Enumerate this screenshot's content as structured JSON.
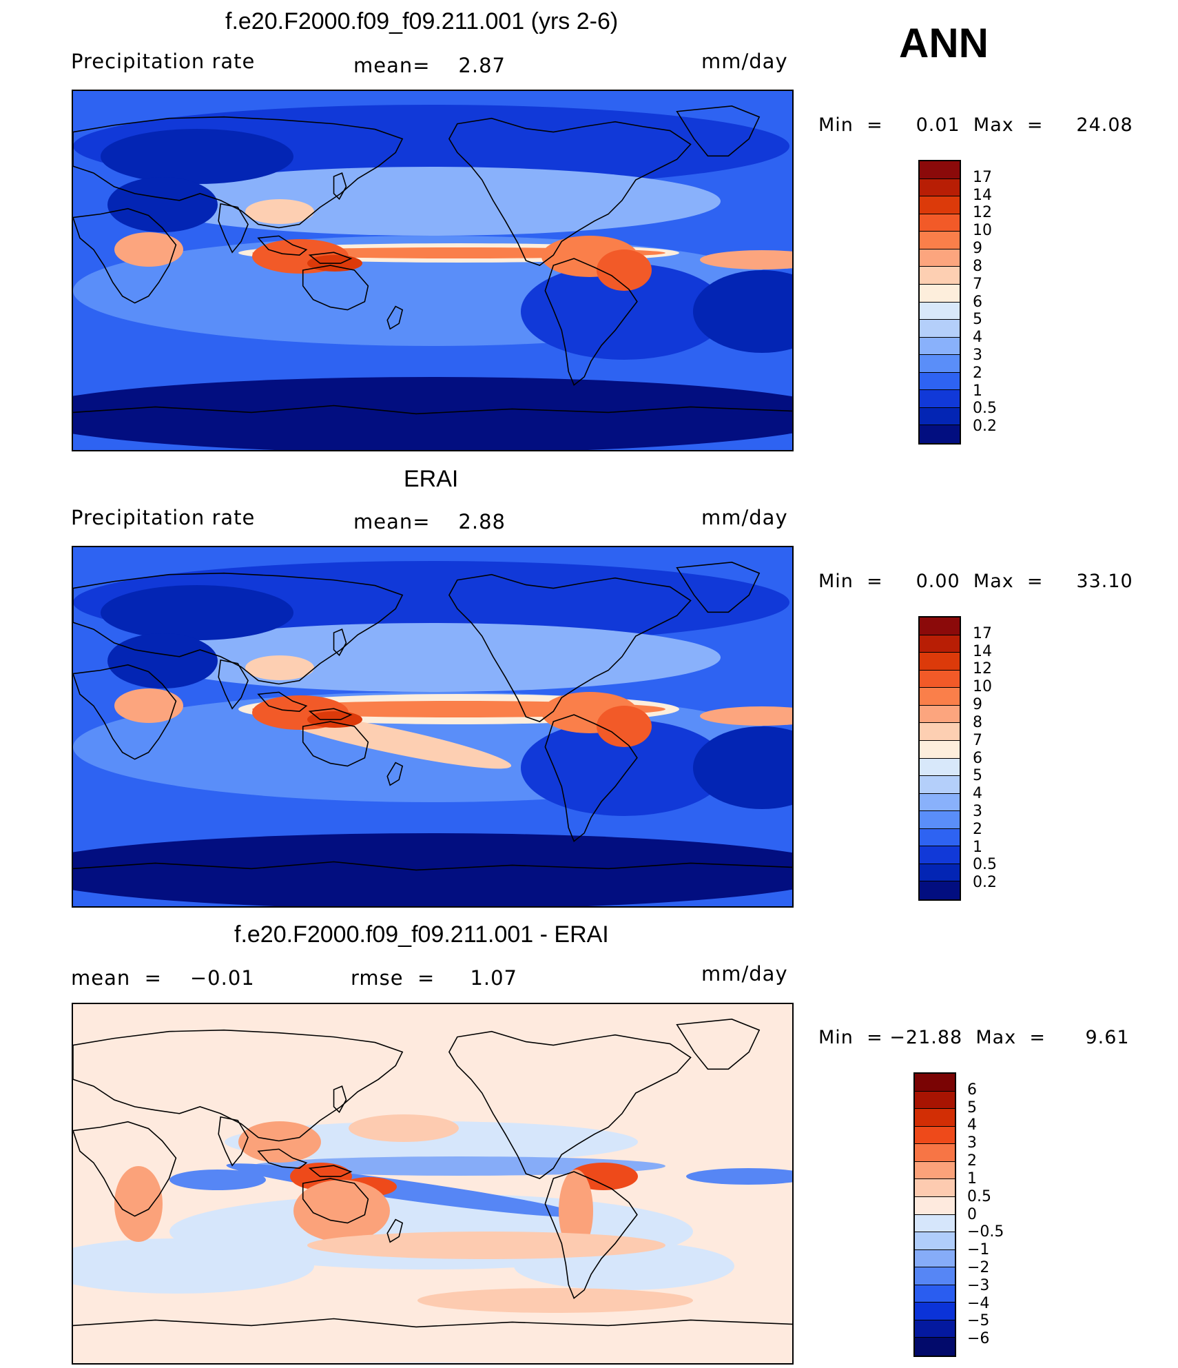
{
  "season": "ANN",
  "panels": [
    {
      "title": "f.e20.F2000.f09_f09.211.001 (yrs 2-6)",
      "left_label": "Precipitation  rate",
      "mid_label": "mean=    2.87",
      "units": "mm/day",
      "minmax": "Min  =     0.01  Max  =     24.08",
      "colorbar_labels": [
        "17",
        "14",
        "12",
        "10",
        "9",
        "8",
        "7",
        "6",
        "5",
        "4",
        "3",
        "2",
        "1",
        "0.5",
        "0.2"
      ],
      "colorbar_colors": [
        "#8b0a0a",
        "#b81e05",
        "#dc3a0a",
        "#f25a28",
        "#fa7f4a",
        "#fca57e",
        "#fdcfb2",
        "#fdeedc",
        "#d8e8fa",
        "#b4cffa",
        "#89b1fb",
        "#5a8ef9",
        "#2e63f2",
        "#1139d8",
        "#0325b4",
        "#020e80"
      ],
      "map_variant": "model"
    },
    {
      "title": "ERAI",
      "left_label": "Precipitation  rate",
      "mid_label": "mean=    2.88",
      "units": "mm/day",
      "minmax": "Min  =     0.00  Max  =     33.10",
      "colorbar_labels": [
        "17",
        "14",
        "12",
        "10",
        "9",
        "8",
        "7",
        "6",
        "5",
        "4",
        "3",
        "2",
        "1",
        "0.5",
        "0.2"
      ],
      "colorbar_colors": [
        "#8b0a0a",
        "#b81e05",
        "#dc3a0a",
        "#f25a28",
        "#fa7f4a",
        "#fca57e",
        "#fdcfb2",
        "#fdeedc",
        "#d8e8fa",
        "#b4cffa",
        "#89b1fb",
        "#5a8ef9",
        "#2e63f2",
        "#1139d8",
        "#0325b4",
        "#020e80"
      ],
      "map_variant": "obs"
    },
    {
      "title": "f.e20.F2000.f09_f09.211.001 - ERAI",
      "left_label": "mean  =    −0.01",
      "mid_label": "rmse  =     1.07",
      "units": "mm/day",
      "minmax": "Min  = −21.88  Max  =      9.61",
      "colorbar_labels": [
        "6",
        "5",
        "4",
        "3",
        "2",
        "1",
        "0.5",
        "0",
        "−0.5",
        "−1",
        "−2",
        "−3",
        "−4",
        "−5",
        "−6"
      ],
      "colorbar_colors": [
        "#7a0404",
        "#a81402",
        "#d22e05",
        "#ee4a1a",
        "#f77545",
        "#fba27a",
        "#fdcbb0",
        "#feeade",
        "#d6e6fb",
        "#b0cdfa",
        "#86acf8",
        "#5686f5",
        "#2a5df0",
        "#0b33d8",
        "#04199f",
        "#020a6b"
      ],
      "map_variant": "diff"
    }
  ]
}
